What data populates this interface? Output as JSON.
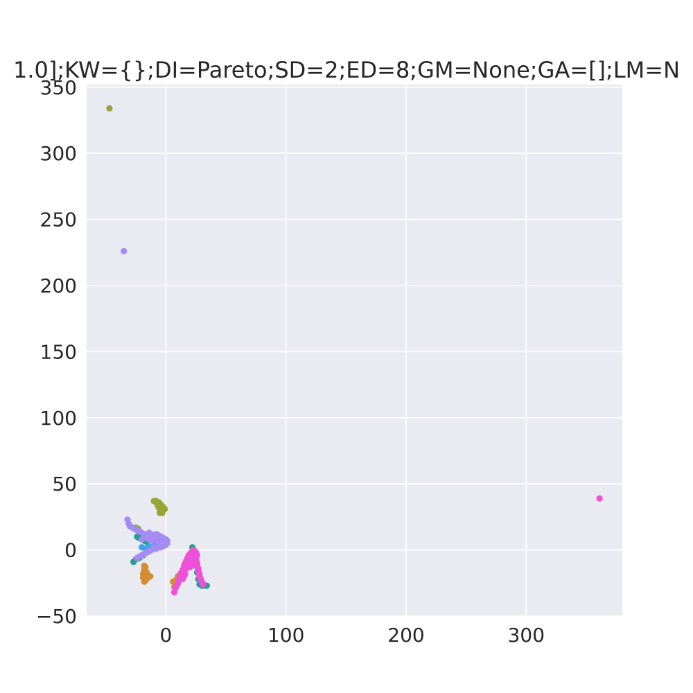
{
  "chart_data": {
    "type": "scatter",
    "title": "1.0];KW={};DI=Pareto;SD=2;ED=8;GM=None;GA=[];LM=N",
    "xlabel": "",
    "ylabel": "",
    "xlim": [
      -66,
      380
    ],
    "ylim": [
      -50,
      352
    ],
    "xticks": [
      0,
      100,
      200,
      300
    ],
    "yticks": [
      -50,
      0,
      50,
      100,
      150,
      200,
      250,
      300,
      350
    ],
    "ytick_labels": [
      "−50",
      "0",
      "50",
      "100",
      "150",
      "200",
      "250",
      "300",
      "350"
    ],
    "grid": true,
    "background": "#eaeaf2",
    "series": [
      {
        "color": "#2a9d8f",
        "points": [
          [
            -27,
            -9
          ],
          [
            -25,
            -7
          ],
          [
            -22,
            -6
          ],
          [
            -19,
            -4
          ],
          [
            -16,
            -2
          ],
          [
            -13,
            0
          ],
          [
            -10,
            1
          ],
          [
            -7,
            3
          ],
          [
            -4,
            4
          ],
          [
            -24,
            10
          ],
          [
            -22,
            9
          ],
          [
            -20,
            8
          ],
          [
            -18,
            7
          ],
          [
            -16,
            6
          ],
          [
            22,
            2
          ],
          [
            23,
            0
          ],
          [
            24,
            -3
          ],
          [
            25,
            -7
          ],
          [
            25,
            -12
          ],
          [
            26,
            -17
          ],
          [
            27,
            -22
          ],
          [
            28,
            -26
          ],
          [
            30,
            -27
          ],
          [
            32,
            -27
          ],
          [
            34,
            -27
          ],
          [
            29,
            -24
          ]
        ]
      },
      {
        "color": "#d28d31",
        "points": [
          [
            -18,
            -12
          ],
          [
            -18,
            -15
          ],
          [
            -19,
            -18
          ],
          [
            -19,
            -21
          ],
          [
            -18,
            -24
          ],
          [
            -17,
            -23
          ],
          [
            -16,
            -22
          ],
          [
            -15,
            -21
          ],
          [
            -14,
            -20
          ],
          [
            -13,
            -20
          ],
          [
            -17,
            -19
          ],
          [
            -16,
            -17
          ],
          [
            -17,
            -13
          ],
          [
            6,
            -24
          ],
          [
            8,
            -23
          ],
          [
            10,
            -20
          ],
          [
            12,
            -18
          ],
          [
            9,
            -25
          ],
          [
            7,
            -28
          ]
        ]
      },
      {
        "color": "#96a534",
        "points": [
          [
            -47,
            334
          ],
          [
            -10,
            37
          ],
          [
            -8,
            37
          ],
          [
            -7,
            36
          ],
          [
            -6,
            36
          ],
          [
            -5,
            35
          ],
          [
            -4,
            34
          ],
          [
            -3,
            33
          ],
          [
            -2,
            32
          ],
          [
            -1,
            31
          ],
          [
            -3,
            30
          ],
          [
            -4,
            29
          ],
          [
            -5,
            28
          ],
          [
            -3,
            28
          ],
          [
            -6,
            32
          ],
          [
            -7,
            34
          ],
          [
            -26,
            16
          ],
          [
            -24,
            15
          ],
          [
            -22,
            14
          ],
          [
            -25,
            17
          ],
          [
            -23,
            16
          ]
        ]
      },
      {
        "color": "#3ba3ec",
        "points": [
          [
            -20,
            2
          ],
          [
            -17,
            1
          ],
          [
            -14,
            2
          ],
          [
            -11,
            3
          ],
          [
            -8,
            4
          ],
          [
            20,
            -3
          ],
          [
            22,
            -6
          ],
          [
            24,
            -9
          ],
          [
            26,
            -13
          ]
        ]
      },
      {
        "color": "#a48cf4",
        "points": [
          [
            -35,
            226
          ],
          [
            -32,
            23
          ],
          [
            -31,
            20
          ],
          [
            -30,
            18
          ],
          [
            -28,
            17
          ],
          [
            -26,
            16
          ],
          [
            -24,
            15
          ],
          [
            -22,
            14
          ],
          [
            -20,
            13
          ],
          [
            -18,
            12
          ],
          [
            -16,
            11
          ],
          [
            -14,
            10
          ],
          [
            -12,
            9
          ],
          [
            -10,
            8
          ],
          [
            -8,
            7
          ],
          [
            -6,
            6
          ],
          [
            -4,
            5
          ],
          [
            -2,
            5
          ],
          [
            0,
            6
          ],
          [
            1,
            7
          ],
          [
            -14,
            13
          ],
          [
            -12,
            12
          ],
          [
            -10,
            11
          ],
          [
            -8,
            12
          ],
          [
            -6,
            11
          ],
          [
            -4,
            10
          ],
          [
            -2,
            9
          ],
          [
            0,
            8
          ],
          [
            -10,
            2
          ],
          [
            -8,
            1
          ],
          [
            -6,
            2
          ],
          [
            -4,
            2
          ],
          [
            -2,
            3
          ],
          [
            0,
            4
          ],
          [
            1,
            5
          ],
          [
            -24,
            -6
          ],
          [
            -22,
            -5
          ],
          [
            -20,
            -4
          ],
          [
            -18,
            -3
          ],
          [
            -16,
            -2
          ],
          [
            -14,
            -1
          ],
          [
            -12,
            0
          ],
          [
            -10,
            1
          ],
          [
            -20,
            8
          ],
          [
            -18,
            9
          ],
          [
            -16,
            10
          ],
          [
            -14,
            8
          ],
          [
            -12,
            7
          ]
        ]
      },
      {
        "color": "#f050d8",
        "points": [
          [
            361,
            39
          ],
          [
            7,
            -32
          ],
          [
            8,
            -29
          ],
          [
            9,
            -27
          ],
          [
            10,
            -25
          ],
          [
            11,
            -22
          ],
          [
            12,
            -20
          ],
          [
            13,
            -17
          ],
          [
            14,
            -15
          ],
          [
            15,
            -12
          ],
          [
            16,
            -10
          ],
          [
            17,
            -8
          ],
          [
            18,
            -6
          ],
          [
            19,
            -4
          ],
          [
            20,
            -3
          ],
          [
            21,
            -2
          ],
          [
            22,
            -1
          ],
          [
            23,
            0
          ],
          [
            24,
            -1
          ],
          [
            25,
            -2
          ],
          [
            26,
            -4
          ],
          [
            25,
            -6
          ],
          [
            25,
            -8
          ],
          [
            26,
            -10
          ],
          [
            26,
            -12
          ],
          [
            27,
            -14
          ],
          [
            27,
            -16
          ],
          [
            28,
            -18
          ],
          [
            28,
            -20
          ],
          [
            29,
            -22
          ],
          [
            30,
            -24
          ],
          [
            31,
            -26
          ],
          [
            18,
            -9
          ],
          [
            19,
            -11
          ],
          [
            20,
            -13
          ],
          [
            21,
            -12
          ],
          [
            22,
            -10
          ],
          [
            23,
            -8
          ],
          [
            24,
            -6
          ],
          [
            17,
            -14
          ],
          [
            16,
            -18
          ],
          [
            15,
            -20
          ],
          [
            14,
            -22
          ]
        ]
      }
    ]
  }
}
